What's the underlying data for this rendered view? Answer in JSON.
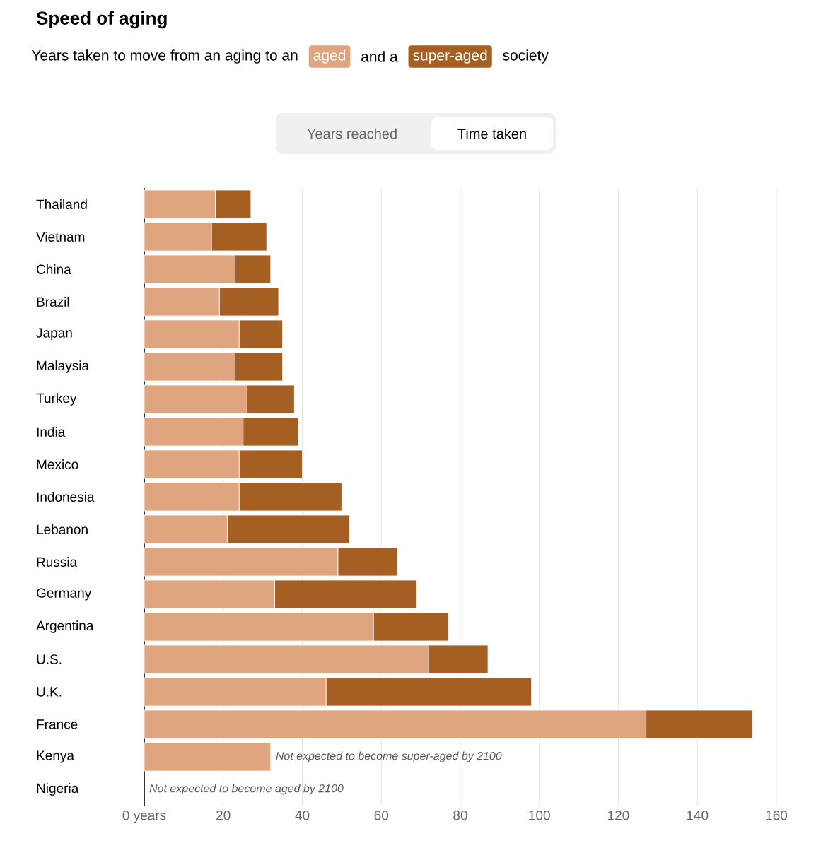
{
  "chart_data": {
    "type": "bar",
    "orientation": "horizontal",
    "stacked": true,
    "title": "Speed of aging",
    "subtitle": "Years taken to move from an aging to an",
    "legend": "top left",
    "grid": "x",
    "categories": [
      "Thailand",
      "Vietnam",
      "China",
      "Brazil",
      "Japan",
      "Malaysia",
      "Turkey",
      "India",
      "Mexico",
      "Indonesia",
      "Lebanon",
      "Russia",
      "Germany",
      "Argentina",
      "U.S.",
      "U.K.",
      "France",
      "Kenya",
      "Nigeria"
    ],
    "series": [
      {
        "name": "aged",
        "color": "#dfa57f",
        "values": [
          18,
          17,
          23,
          19,
          24,
          23,
          26,
          25,
          24,
          24,
          21,
          49,
          33,
          58,
          72,
          46,
          127,
          32,
          null
        ]
      },
      {
        "name": "super-aged",
        "color": "#a65f22",
        "values": [
          9,
          14,
          9,
          15,
          11,
          12,
          12,
          14,
          16,
          26,
          31,
          15,
          36,
          19,
          15,
          52,
          27,
          null,
          null
        ]
      }
    ],
    "xlim": [
      0,
      160
    ],
    "xticks": [
      {
        "value": 0,
        "label": "0 years"
      },
      20,
      40,
      60,
      80,
      100,
      120,
      140,
      160
    ],
    "annotations": [
      "and a",
      "society",
      "Years reached",
      "Time taken",
      {
        "text": "Not expected to become super-aged by 2100",
        "x": 32,
        "y": "Kenya"
      },
      "Not expected to become aged by 2100"
    ]
  }
}
